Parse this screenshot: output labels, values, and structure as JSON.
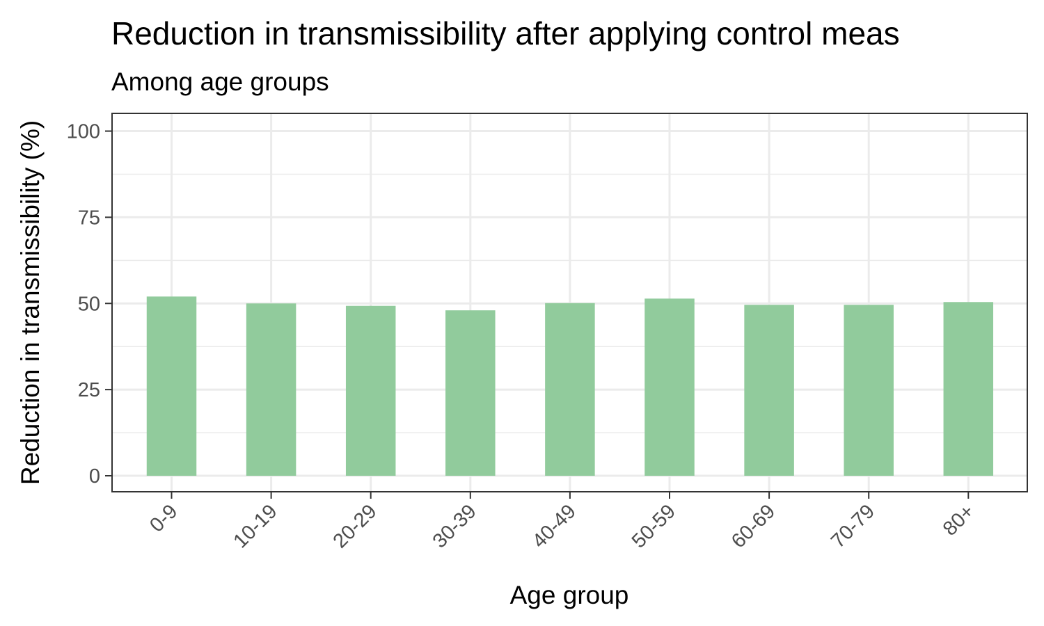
{
  "chart_data": {
    "type": "bar",
    "title": "Reduction in transmissibility after applying control meas",
    "subtitle": "Among age groups",
    "xlabel": "Age group",
    "ylabel": "Reduction in transmissibility (%)",
    "categories": [
      "0-9",
      "10-19",
      "20-29",
      "30-39",
      "40-49",
      "50-59",
      "60-69",
      "70-79",
      "80+"
    ],
    "values": [
      52,
      50,
      49.3,
      48,
      50.1,
      51.4,
      49.6,
      49.6,
      50.4
    ],
    "ylim": [
      0,
      100
    ],
    "yticks": [
      0,
      25,
      50,
      75,
      100
    ],
    "ytick_labels": [
      "0",
      "25",
      "50",
      "75",
      "100"
    ],
    "grid": true,
    "bar_color": "#91cb9c",
    "panel_border_color": "#333333",
    "grid_color": "#ebebeb"
  }
}
